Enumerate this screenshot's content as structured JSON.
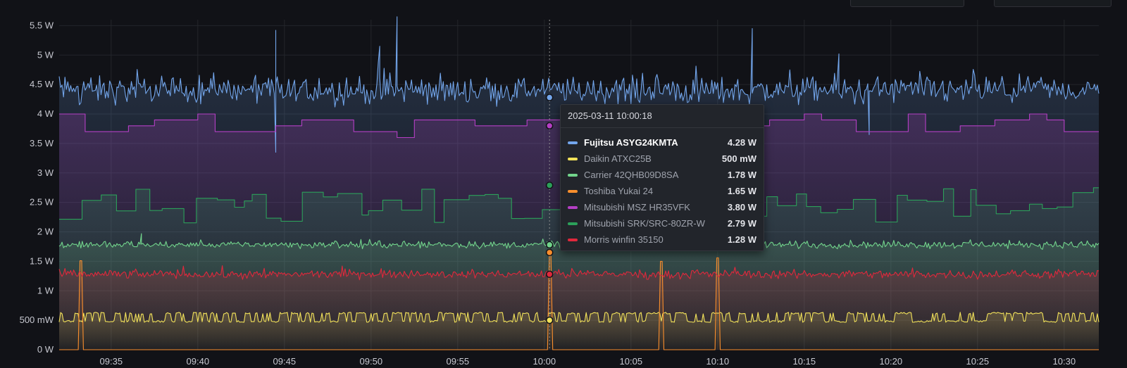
{
  "chart_data": {
    "type": "line",
    "title": "",
    "xlabel": "",
    "ylabel": "",
    "ylim": [
      0,
      5.6
    ],
    "y_ticks": [
      {
        "value": 0,
        "label": "0 W"
      },
      {
        "value": 0.5,
        "label": "500 mW"
      },
      {
        "value": 1.0,
        "label": "1 W"
      },
      {
        "value": 1.5,
        "label": "1.5 W"
      },
      {
        "value": 2.0,
        "label": "2 W"
      },
      {
        "value": 2.5,
        "label": "2.5 W"
      },
      {
        "value": 3.0,
        "label": "3 W"
      },
      {
        "value": 3.5,
        "label": "3.5 W"
      },
      {
        "value": 4.0,
        "label": "4 W"
      },
      {
        "value": 4.5,
        "label": "4.5 W"
      },
      {
        "value": 5.0,
        "label": "5 W"
      },
      {
        "value": 5.5,
        "label": "5.5 W"
      }
    ],
    "x_range": [
      "09:32",
      "10:32"
    ],
    "x_ticks": [
      "09:35",
      "09:40",
      "09:45",
      "09:50",
      "09:55",
      "10:00",
      "10:05",
      "10:10",
      "10:15",
      "10:20",
      "10:25",
      "10:30"
    ],
    "grid": true,
    "cursor_time": "10:00:18",
    "series": [
      {
        "name": "Fujitsu ASYG24KMTA",
        "color": "#73a6ec",
        "profile": "noisy",
        "mean": 4.4,
        "noise": 0.16,
        "spikes": [
          {
            "x": "09:44:30",
            "y": 5.42
          },
          {
            "x": "09:44:30",
            "y": 3.35
          },
          {
            "x": "09:51:30",
            "y": 5.65
          },
          {
            "x": "09:50:30",
            "y": 5.15
          },
          {
            "x": "10:12:00",
            "y": 5.45
          },
          {
            "x": "10:18:45",
            "y": 3.65
          },
          {
            "x": "10:17:00",
            "y": 5.02
          }
        ]
      },
      {
        "name": "Daikin ATXC25B",
        "color": "#f2e25a",
        "profile": "pulse",
        "mean": 0.54,
        "noise": 0.06
      },
      {
        "name": "Carrier 42QHB09D8SA",
        "color": "#72d58c",
        "profile": "noisy",
        "mean": 1.78,
        "noise": 0.04,
        "spikes": [
          {
            "x": "09:36:45",
            "y": 1.97
          }
        ]
      },
      {
        "name": "Toshiba Yukai 24",
        "color": "#fa8f2d",
        "profile": "impulses",
        "points": [
          [
            "09:32",
            0
          ],
          [
            "09:33:15",
            1.51
          ],
          [
            "09:33:30",
            0
          ],
          [
            "10:00:20",
            1.6
          ],
          [
            "10:06:45",
            1.5
          ],
          [
            "10:10:00",
            1.56
          ]
        ]
      },
      {
        "name": "Mitsubishi MSZ HR35VFK",
        "color": "#b53fc5",
        "profile": "step",
        "points": [
          [
            "09:32",
            4.0
          ],
          [
            "09:33:30",
            3.7
          ],
          [
            "09:36",
            3.8
          ],
          [
            "09:37:30",
            3.9
          ],
          [
            "09:40",
            4.0
          ],
          [
            "09:41",
            3.7
          ],
          [
            "09:44:30",
            3.8
          ],
          [
            "09:46",
            3.9
          ],
          [
            "09:49",
            3.7
          ],
          [
            "09:51:30",
            3.6
          ],
          [
            "09:52:30",
            3.9
          ],
          [
            "09:56",
            3.8
          ],
          [
            "09:59",
            3.9
          ],
          [
            "10:01",
            3.8
          ],
          [
            "10:10",
            3.7
          ],
          [
            "10:11",
            3.8
          ],
          [
            "10:13",
            3.9
          ],
          [
            "10:15",
            4.0
          ],
          [
            "10:16",
            3.9
          ],
          [
            "10:18",
            3.7
          ],
          [
            "10:21",
            4.0
          ],
          [
            "10:22",
            3.7
          ],
          [
            "10:24",
            3.8
          ],
          [
            "10:26",
            3.9
          ],
          [
            "10:28",
            4.0
          ],
          [
            "10:29",
            3.9
          ],
          [
            "10:30",
            3.7
          ]
        ]
      },
      {
        "name": "Mitsubishi SRK/SRC-80ZR-W",
        "color": "#2ca05a",
        "profile": "step-noisy",
        "mean": 2.45,
        "noise": 0.14
      },
      {
        "name": "Morris winfin 35150",
        "color": "#e0283c",
        "profile": "noisy",
        "mean": 1.28,
        "noise": 0.05
      }
    ]
  },
  "tooltip": {
    "header": "2025-03-11 10:00:18",
    "rows": [
      {
        "name": "Fujitsu ASYG24KMTA",
        "value": "4.28 W",
        "color": "#73a6ec",
        "active": true
      },
      {
        "name": "Daikin ATXC25B",
        "value": "500 mW",
        "color": "#f2e25a"
      },
      {
        "name": "Carrier 42QHB09D8SA",
        "value": "1.78 W",
        "color": "#72d58c"
      },
      {
        "name": "Toshiba Yukai 24",
        "value": "1.65 W",
        "color": "#fa8f2d"
      },
      {
        "name": "Mitsubishi MSZ HR35VFK",
        "value": "3.80 W",
        "color": "#b53fc5"
      },
      {
        "name": "Mitsubishi SRK/SRC-80ZR-W",
        "value": "2.79 W",
        "color": "#2ca05a"
      },
      {
        "name": "Morris winfin 35150",
        "value": "1.28 W",
        "color": "#e0283c"
      }
    ]
  },
  "colors": {
    "background": "#111217",
    "grid": "#23252b",
    "axis_text": "#c7c8d0",
    "cursor": "#8e8e8e"
  }
}
